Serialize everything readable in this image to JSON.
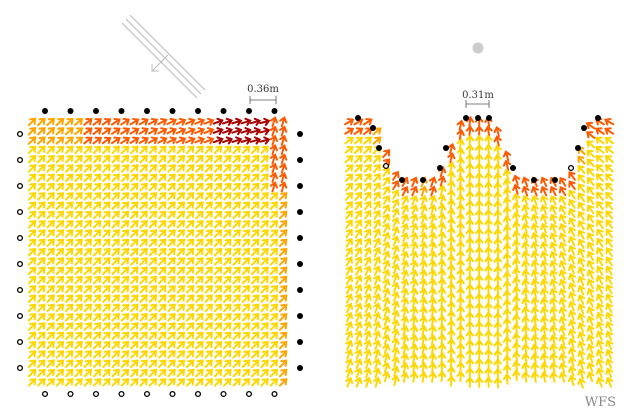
{
  "left_panel": {
    "scale_label": "0.36m",
    "source": "plane-wave",
    "source_icon": "plane-wave-source-icon"
  },
  "right_panel": {
    "scale_label": "0.31m",
    "source": "point-source",
    "source_icon": "point-source-icon"
  },
  "watermark": "WFS",
  "legend": {
    "active_loudspeaker": "filled-black-dot",
    "inactive_loudspeaker": "hollow-circle"
  },
  "colors": {
    "arrow_light": "#ffd700",
    "arrow_mid": "#ffa500",
    "arrow_strong": "#ff5a00",
    "arrow_extreme": "#a80000",
    "speaker_active": "#000000",
    "point_source": "#cccccc",
    "plane_wave": "#bbbbbb",
    "text": "#333333",
    "watermark": "#888888"
  }
}
